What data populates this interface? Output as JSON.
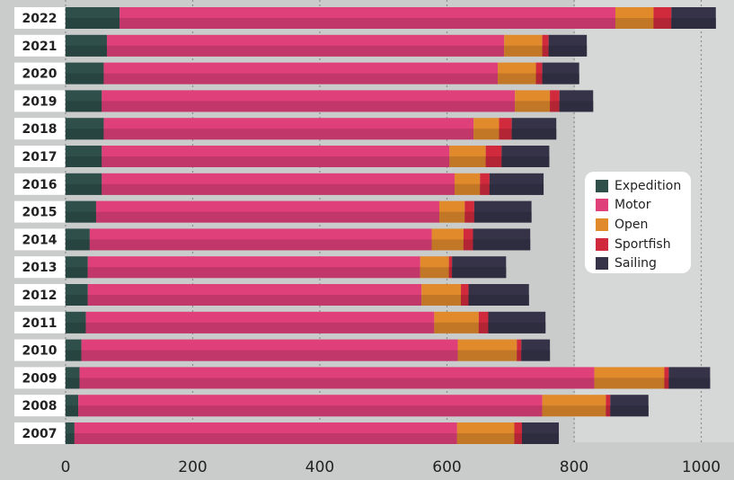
{
  "chart_data": {
    "type": "bar",
    "orientation": "horizontal",
    "stacked": true,
    "title": "",
    "xlabel": "",
    "ylabel": "",
    "xlim": [
      0,
      1030
    ],
    "x_ticks": [
      0,
      200,
      400,
      600,
      800,
      1000
    ],
    "categories": [
      "2022",
      "2021",
      "2020",
      "2019",
      "2018",
      "2017",
      "2016",
      "2015",
      "2014",
      "2013",
      "2012",
      "2011",
      "2010",
      "2009",
      "2008",
      "2007"
    ],
    "series": [
      {
        "name": "Expedition",
        "color": "#2f4f4b",
        "values": [
          85,
          65,
          60,
          57,
          60,
          57,
          57,
          48,
          38,
          35,
          35,
          32,
          25,
          22,
          20,
          14
        ]
      },
      {
        "name": "Motor",
        "color": "#e0407a",
        "values": [
          780,
          625,
          620,
          650,
          582,
          547,
          555,
          540,
          538,
          523,
          525,
          548,
          592,
          810,
          730,
          602
        ]
      },
      {
        "name": "Open",
        "color": "#e08a2c",
        "values": [
          60,
          60,
          60,
          55,
          40,
          57,
          40,
          40,
          50,
          45,
          62,
          70,
          93,
          110,
          100,
          90
        ]
      },
      {
        "name": "Sportfish",
        "color": "#d02a3c",
        "values": [
          28,
          10,
          10,
          15,
          20,
          25,
          15,
          15,
          15,
          5,
          12,
          15,
          7,
          7,
          7,
          12
        ]
      },
      {
        "name": "Sailing",
        "color": "#363349",
        "values": [
          70,
          60,
          58,
          53,
          70,
          75,
          85,
          90,
          90,
          85,
          95,
          90,
          45,
          65,
          60,
          58
        ]
      }
    ],
    "legend": {
      "position": "right",
      "entries": [
        "Expedition",
        "Motor",
        "Open",
        "Sportfish",
        "Sailing"
      ]
    }
  }
}
